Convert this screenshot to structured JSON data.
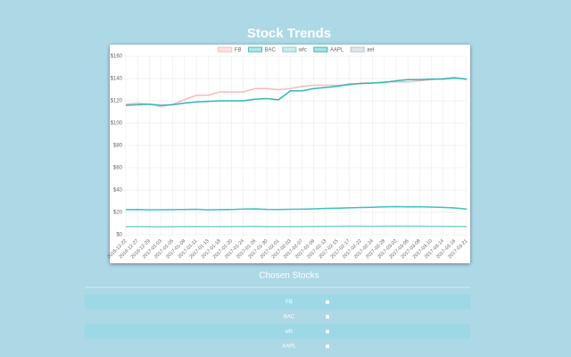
{
  "header": {
    "title": "Stock Trends"
  },
  "chart_data": {
    "type": "line",
    "categories": [
      "2016-12-22",
      "2016-12-27",
      "2016-12-29",
      "2017-01-03",
      "2017-01-05",
      "2017-01-09",
      "2017-01-11",
      "2017-01-13",
      "2017-01-18",
      "2017-01-20",
      "2017-01-24",
      "2017-01-26",
      "2017-01-30",
      "2017-02-01",
      "2017-02-03",
      "2017-02-07",
      "2017-02-09",
      "2017-02-13",
      "2017-02-15",
      "2017-02-17",
      "2017-02-22",
      "2017-02-24",
      "2017-02-28",
      "2017-03-02",
      "2017-03-06",
      "2017-03-08",
      "2017-03-10",
      "2017-03-14",
      "2017-03-16",
      "2017-03-21"
    ],
    "series": [
      {
        "name": "FB",
        "color": "#f7b9bd",
        "values": [
          117,
          118,
          117,
          115,
          117,
          121,
          125,
          125,
          128,
          128,
          128,
          131,
          131,
          130,
          131,
          133,
          134,
          134,
          134,
          134,
          136,
          136,
          137,
          137,
          137,
          138,
          139,
          140,
          141,
          139
        ]
      },
      {
        "name": "BAC",
        "color": "#3cc1c1",
        "values": [
          22.5,
          22.6,
          22.3,
          22.4,
          22.5,
          22.6,
          22.8,
          22.3,
          22.5,
          22.6,
          23.0,
          23.2,
          22.7,
          22.6,
          22.8,
          22.9,
          23.2,
          23.6,
          23.8,
          24.1,
          24.4,
          24.6,
          25.0,
          25.2,
          25.0,
          25.1,
          24.8,
          24.5,
          24.0,
          23.0
        ]
      },
      {
        "name": "wfc",
        "color": "#7fcfcf",
        "values": [
          7.2,
          7.3,
          7.2,
          7.1,
          7.2,
          7.3,
          7.4,
          7.2,
          7.3,
          7.3,
          7.4,
          7.5,
          7.3,
          7.2,
          7.3,
          7.3,
          7.4,
          7.5,
          7.5,
          7.6,
          7.6,
          7.5,
          7.6,
          7.7,
          7.6,
          7.6,
          7.5,
          7.5,
          7.4,
          7.4
        ]
      },
      {
        "name": "AAPL",
        "color": "#2fb8b8",
        "values": [
          116,
          116.5,
          117,
          116,
          116.5,
          118,
          119,
          119.5,
          120,
          120,
          120,
          121.5,
          122,
          121,
          129,
          129,
          131,
          132,
          133,
          135,
          135.5,
          136,
          136.5,
          138,
          139,
          139,
          139.5,
          139.5,
          140.5,
          139.5
        ]
      },
      {
        "name": "ael",
        "color": "#b5c3c8",
        "values": [
          null,
          null,
          null,
          null,
          null,
          null,
          null,
          null,
          null,
          null,
          null,
          null,
          null,
          null,
          null,
          null,
          null,
          null,
          null,
          null,
          null,
          null,
          null,
          null,
          null,
          null,
          null,
          null,
          null,
          null
        ]
      }
    ],
    "ylim": [
      0,
      160
    ],
    "yticks": [
      {
        "value": 0,
        "label": "$0"
      },
      {
        "value": 20,
        "label": "$20"
      },
      {
        "value": 40,
        "label": "$40"
      },
      {
        "value": 60,
        "label": "$60"
      },
      {
        "value": 80,
        "label": "$80"
      },
      {
        "value": 100,
        "label": "$100"
      },
      {
        "value": 120,
        "label": "$120"
      },
      {
        "value": 140,
        "label": "$140"
      },
      {
        "value": 160,
        "label": "$160"
      }
    ],
    "grid": true,
    "legend": "top"
  },
  "chosen": {
    "title": "Chosen Stocks",
    "stocks": [
      "FB",
      "BAC",
      "wfc",
      "AAPL"
    ]
  }
}
